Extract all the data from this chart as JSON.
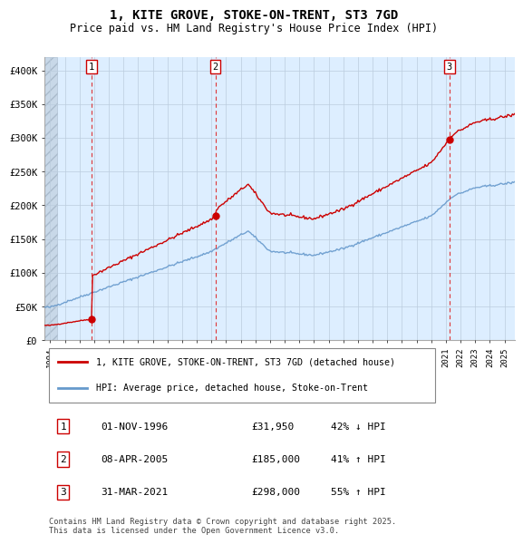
{
  "title": "1, KITE GROVE, STOKE-ON-TRENT, ST3 7GD",
  "subtitle": "Price paid vs. HM Land Registry's House Price Index (HPI)",
  "ylim": [
    0,
    420000
  ],
  "yticks": [
    0,
    50000,
    100000,
    150000,
    200000,
    250000,
    300000,
    350000,
    400000
  ],
  "ytick_labels": [
    "£0",
    "£50K",
    "£100K",
    "£150K",
    "£200K",
    "£250K",
    "£300K",
    "£350K",
    "£400K"
  ],
  "xlim_start": 1993.6,
  "xlim_end": 2025.7,
  "xtick_years": [
    1994,
    1995,
    1996,
    1997,
    1998,
    1999,
    2000,
    2001,
    2002,
    2003,
    2004,
    2005,
    2006,
    2007,
    2008,
    2009,
    2010,
    2011,
    2012,
    2013,
    2014,
    2015,
    2016,
    2017,
    2018,
    2019,
    2020,
    2021,
    2022,
    2023,
    2024,
    2025
  ],
  "hpi_color": "#6699cc",
  "price_color": "#cc0000",
  "vline_color": "#dd2222",
  "marker_color": "#cc0000",
  "grid_color": "#bbccdd",
  "bg_color": "#ddeeff",
  "hatch_facecolor": "#c8d8e8",
  "sale_points": [
    {
      "label": "1",
      "year": 1996.833,
      "price": 31950
    },
    {
      "label": "2",
      "year": 2005.27,
      "price": 185000
    },
    {
      "label": "3",
      "year": 2021.25,
      "price": 298000
    }
  ],
  "legend_house_label": "1, KITE GROVE, STOKE-ON-TRENT, ST3 7GD (detached house)",
  "legend_hpi_label": "HPI: Average price, detached house, Stoke-on-Trent",
  "table_rows": [
    {
      "num": "1",
      "date": "01-NOV-1996",
      "price": "£31,950",
      "hpi": "42% ↓ HPI"
    },
    {
      "num": "2",
      "date": "08-APR-2005",
      "price": "£185,000",
      "hpi": "41% ↑ HPI"
    },
    {
      "num": "3",
      "date": "31-MAR-2021",
      "price": "£298,000",
      "hpi": "55% ↑ HPI"
    }
  ],
  "footer": "Contains HM Land Registry data © Crown copyright and database right 2025.\nThis data is licensed under the Open Government Licence v3.0."
}
